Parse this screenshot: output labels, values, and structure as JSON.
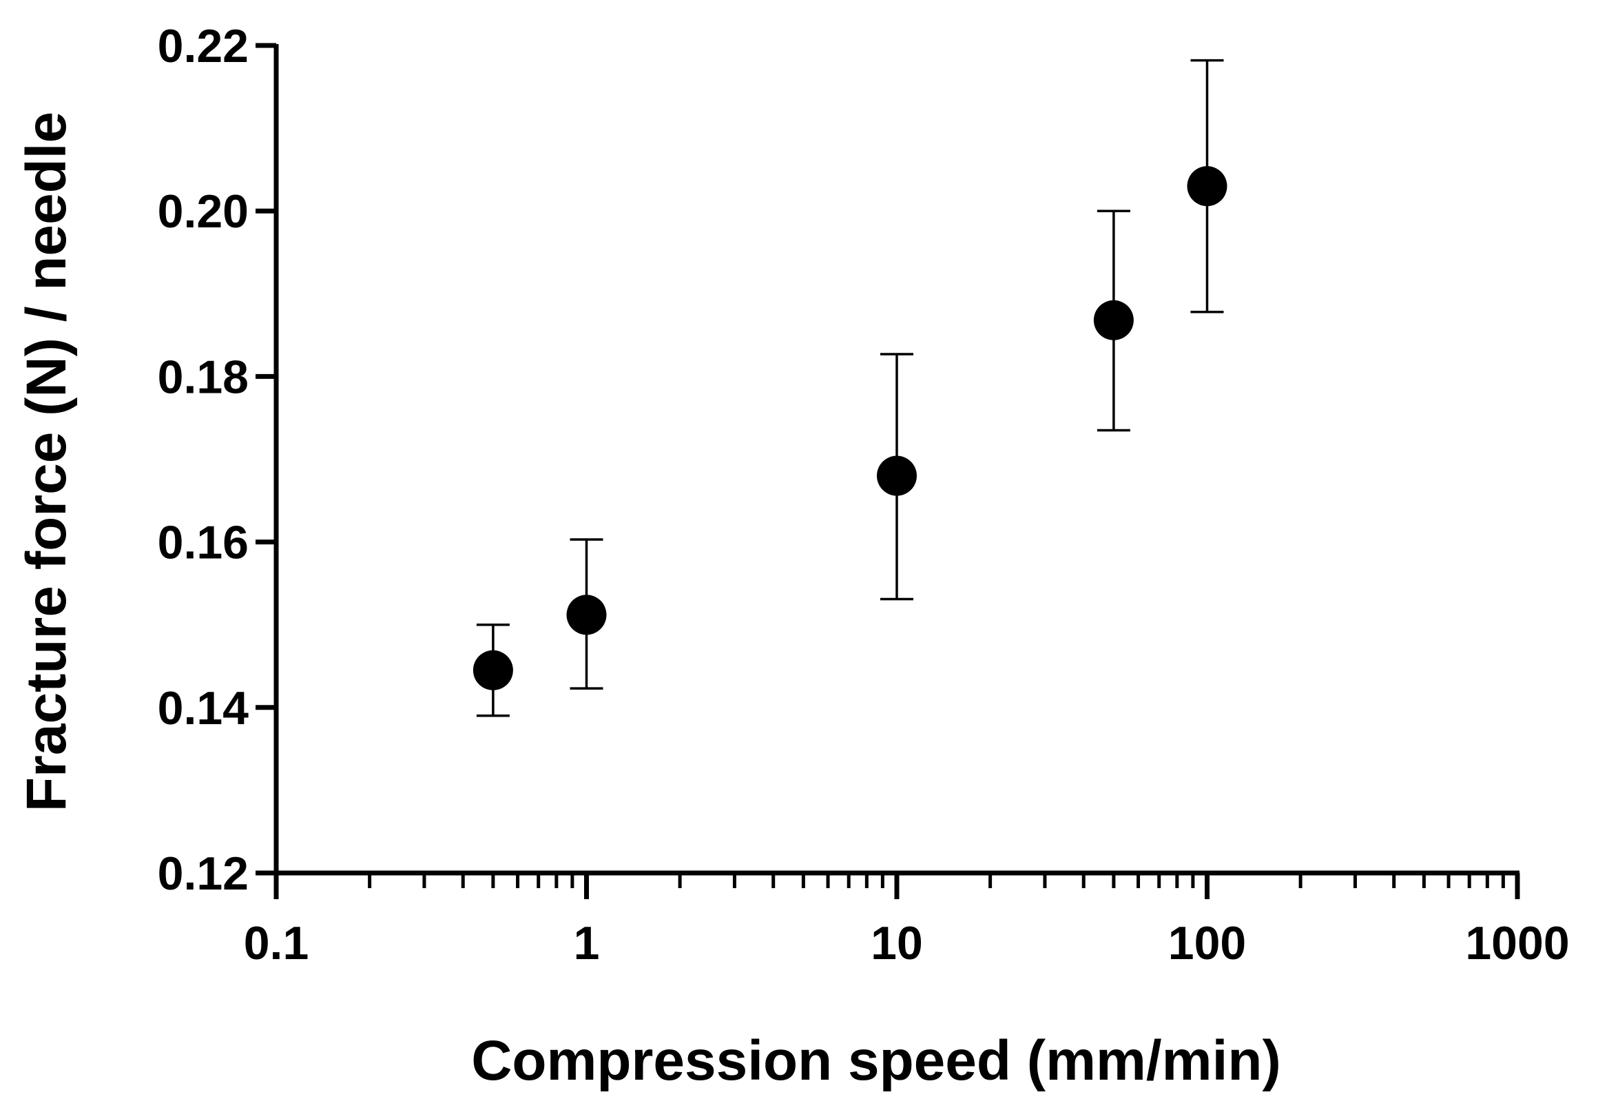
{
  "chart_data": {
    "type": "scatter",
    "title": "",
    "xlabel": "Compression speed (mm/min)",
    "ylabel": "Fracture force (N) / needle",
    "x_scale": "log",
    "xlim": [
      0.1,
      1000
    ],
    "ylim": [
      0.12,
      0.22
    ],
    "x_ticks": [
      0.1,
      1,
      10,
      100,
      1000
    ],
    "x_tick_labels": [
      "0.1",
      "1",
      "10",
      "100",
      "1000"
    ],
    "y_ticks": [
      0.12,
      0.14,
      0.16,
      0.18,
      0.2,
      0.22
    ],
    "y_tick_labels": [
      "0.12",
      "0.14",
      "0.16",
      "0.18",
      "0.20",
      "0.22"
    ],
    "grid": false,
    "series": [
      {
        "name": "Fracture force",
        "color": "#000000",
        "points": [
          {
            "x": 0.5,
            "y": 0.1445,
            "err_low": 0.139,
            "err_high": 0.15
          },
          {
            "x": 1,
            "y": 0.1512,
            "err_low": 0.1423,
            "err_high": 0.1603
          },
          {
            "x": 10,
            "y": 0.168,
            "err_low": 0.1531,
            "err_high": 0.1827
          },
          {
            "x": 50,
            "y": 0.1868,
            "err_low": 0.1735,
            "err_high": 0.2
          },
          {
            "x": 100,
            "y": 0.203,
            "err_low": 0.1878,
            "err_high": 0.2182
          }
        ]
      }
    ]
  }
}
